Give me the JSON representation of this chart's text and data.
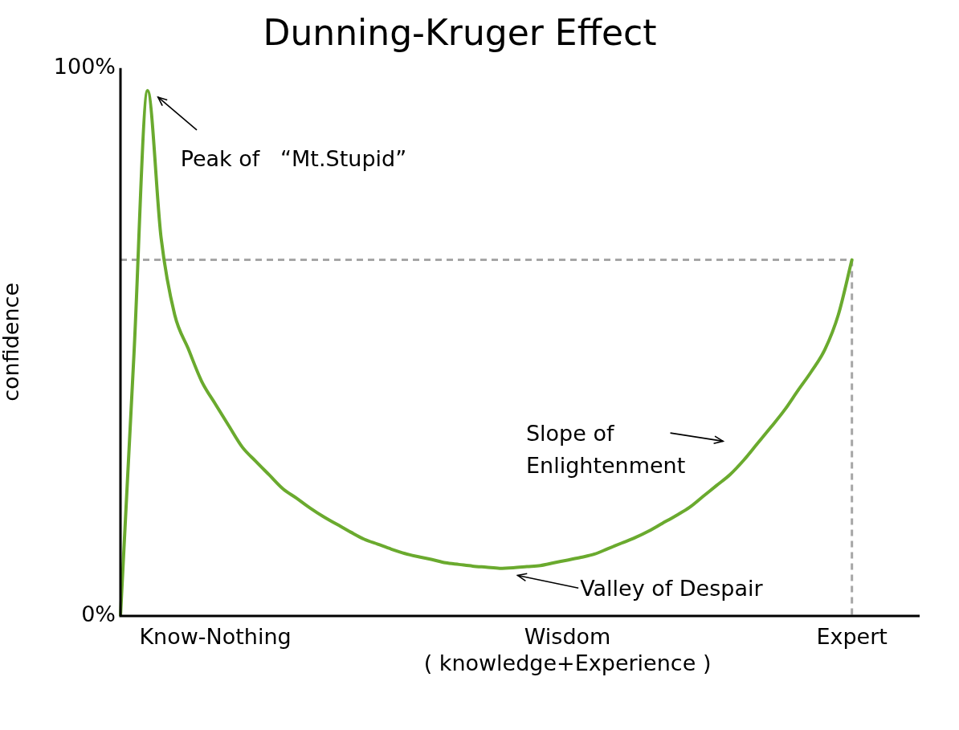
{
  "chart_data": {
    "type": "line",
    "title": "Dunning-Kruger Effect",
    "ylabel": "confidence",
    "categories": [
      null,
      null,
      null,
      null,
      null,
      null,
      null,
      "Know-Nothing",
      null,
      null,
      null,
      null,
      null,
      null,
      null,
      null,
      null,
      null,
      null,
      null,
      null,
      null,
      null,
      null,
      null,
      null,
      null,
      null,
      null,
      null,
      null,
      null,
      null,
      "Wisdom\n( knowledge+Experience )",
      null,
      null,
      null,
      null,
      null,
      null,
      null,
      null,
      null,
      null,
      null,
      null,
      null,
      null,
      null,
      null,
      null,
      null,
      null,
      null,
      "Expert",
      null,
      null,
      null,
      null,
      null
    ],
    "series": [
      {
        "color": "#6aaa2e",
        "values": [
          0,
          48,
          95.9,
          69,
          55,
          48.8,
          42.8,
          38.7,
          34.7,
          30.8,
          28.2,
          25.7,
          23.2,
          21.5,
          19.7,
          18.1,
          16.7,
          15.3,
          14,
          13.1,
          12.2,
          11.4,
          10.8,
          10.3,
          9.7,
          9.4,
          9.1,
          8.9,
          8.7,
          8.8,
          9,
          9.2,
          9.7,
          10.2,
          10.7,
          11.3,
          12.3,
          13.3,
          14.3,
          15.5,
          16.9,
          18.3,
          19.8,
          21.8,
          23.8,
          25.8,
          28.4,
          31.4,
          34.4,
          37.5,
          41.1,
          44.6,
          48.6,
          55,
          65,
          null,
          null,
          null,
          null,
          null
        ]
      }
    ],
    "ylim": [
      0,
      100
    ],
    "yticks": [
      {
        "value": 0,
        "label": "0%"
      },
      {
        "value": 100,
        "label": "100%"
      }
    ],
    "grid": false,
    "legend": false,
    "marker": "none",
    "line_style": "solid",
    "ref_lines": [
      {
        "axis": "y",
        "value": 65,
        "color": "#a6a6a6",
        "line_style": "dashed"
      },
      {
        "axis": "x",
        "value": "Expert",
        "color": "#a6a6a6",
        "line_style": "dashed"
      }
    ],
    "annotations": [
      "Peak of   “Mt.Stupid”",
      "Slope of\nEnlightenment",
      "Valley of Despair"
    ]
  }
}
